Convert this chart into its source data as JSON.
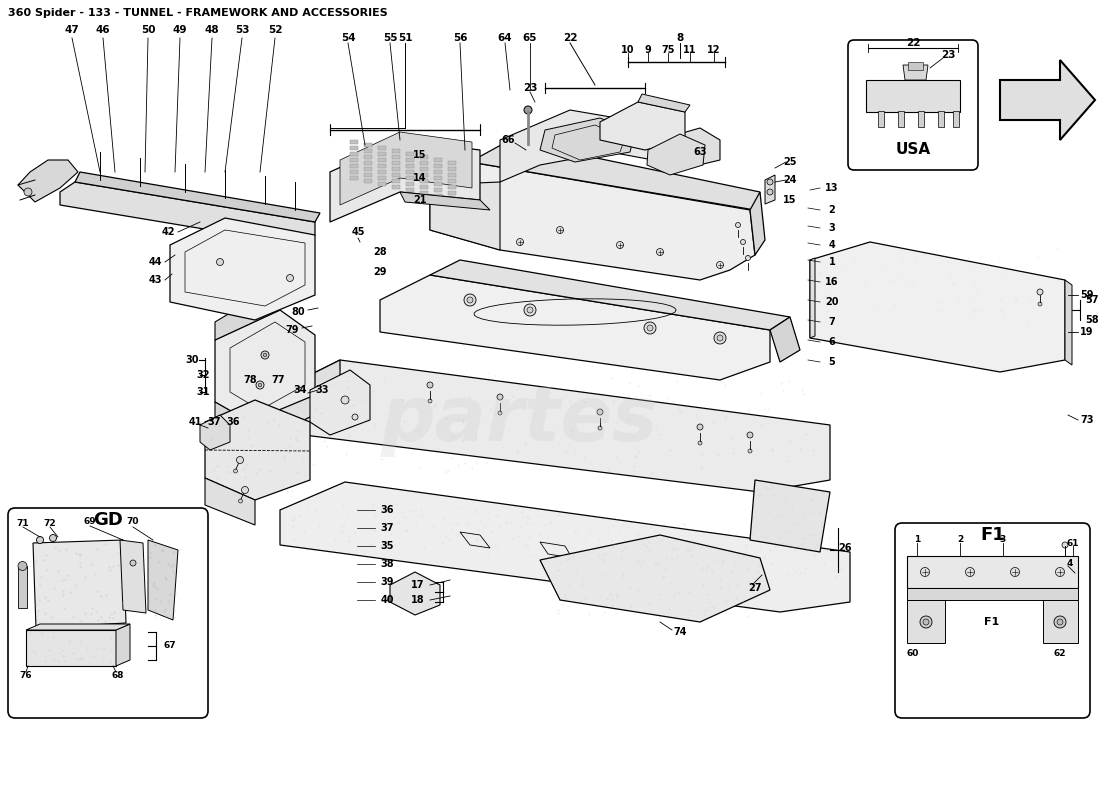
{
  "title": "360 Spider - 133 - TUNNEL - FRAMEWORK AND ACCESSORIES",
  "title_fontsize": 8,
  "background_color": "#ffffff",
  "line_color": "#000000",
  "watermark_text": "partes",
  "watermark_color": "#c8c8c8",
  "usa_label": "USA",
  "gd_label": "GD",
  "f1_label": "F1"
}
